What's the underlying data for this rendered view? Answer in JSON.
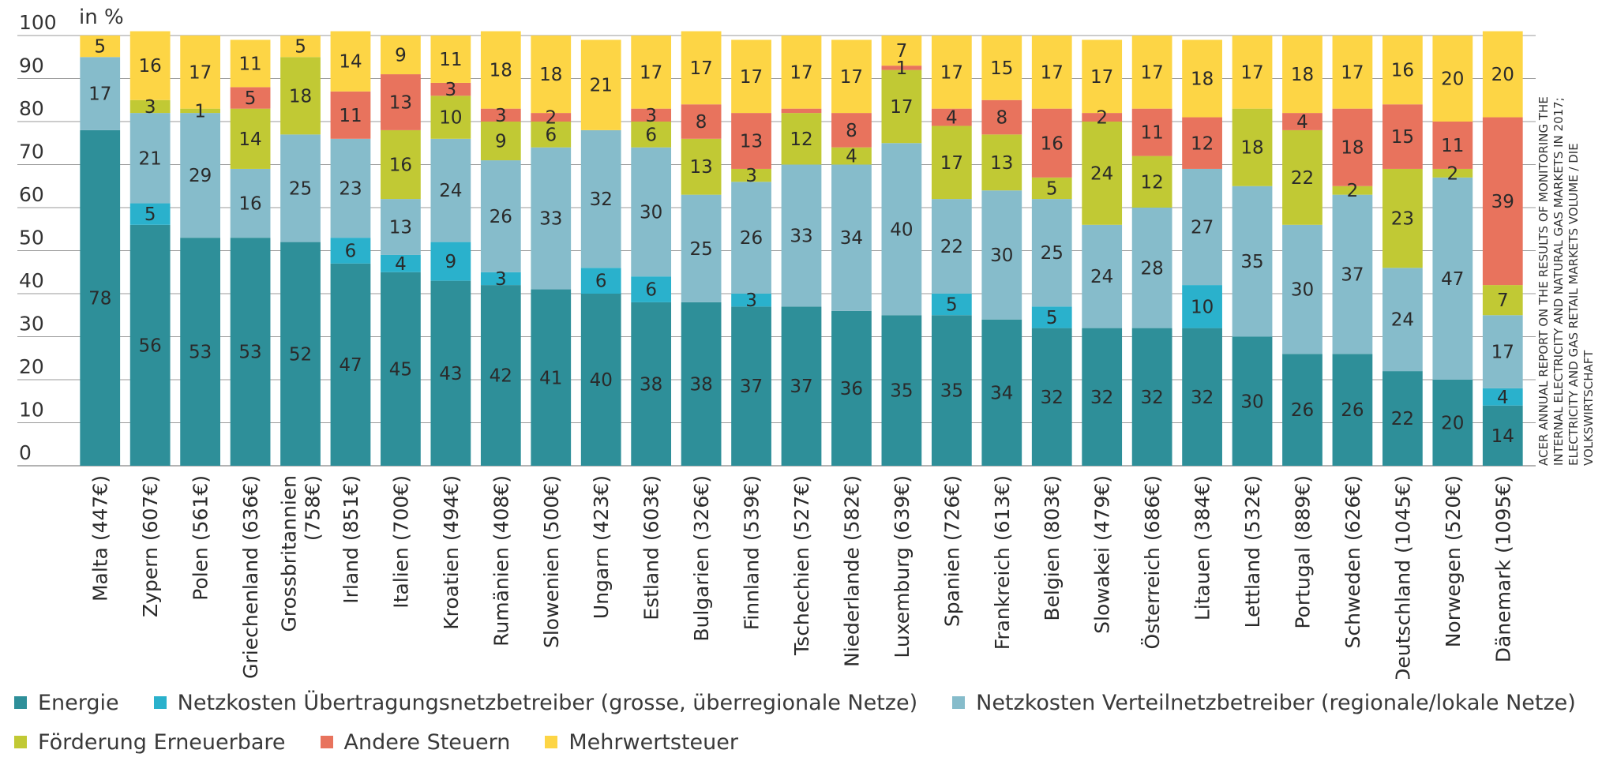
{
  "unit_label": "in %",
  "source_note": "ACER ANNUAL REPORT ON THE RESULTS OF MONITORING THE INTERNAL ELECTRICITY AND NATURAL GAS MARKETS IN 2017; ELECTRICITY AND GAS RETAIL MARKETS VOLUME / DIE VOLKSWIRTSCHAFT",
  "chart_data": {
    "type": "bar",
    "stacked": true,
    "title": "",
    "xlabel": "",
    "ylabel": "in %",
    "ylim": [
      0,
      100
    ],
    "yticks": [
      0,
      10,
      20,
      30,
      40,
      50,
      60,
      70,
      80,
      90,
      100
    ],
    "grid": true,
    "legend_position": "bottom",
    "categories": [
      "Malta (447€)",
      "Zypern (607€)",
      "Polen (561€)",
      "Griechenland (636€)",
      "Grossbritannien (758€)",
      "Irland (851€)",
      "Italien (700€)",
      "Kroatien (494€)",
      "Rumänien (408€)",
      "Slowenien (500€)",
      "Ungarn (423€)",
      "Estland (603€)",
      "Bulgarien (326€)",
      "Finnland (539€)",
      "Tschechien (527€)",
      "Niederlande (582€)",
      "Luxemburg (639€)",
      "Spanien (726€)",
      "Frankreich (613€)",
      "Belgien (803€)",
      "Slowakei (479€)",
      "Österreich (686€)",
      "Litauen (384€)",
      "Lettland (532€)",
      "Portugal (889€)",
      "Schweden (626€)",
      "Deutschland (1045€)",
      "Norwegen (520€)",
      "Dänemark (1095€)"
    ],
    "category_lines": [
      [
        "Malta (447€)"
      ],
      [
        "Zypern (607€)"
      ],
      [
        "Polen (561€)"
      ],
      [
        "Griechenland (636€)"
      ],
      [
        "Grossbritannien",
        "(758€)"
      ],
      [
        "Irland (851€)"
      ],
      [
        "Italien (700€)"
      ],
      [
        "Kroatien (494€)"
      ],
      [
        "Rumänien (408€)"
      ],
      [
        "Slowenien (500€)"
      ],
      [
        "Ungarn (423€)"
      ],
      [
        "Estland (603€)"
      ],
      [
        "Bulgarien (326€)"
      ],
      [
        "Finnland (539€)"
      ],
      [
        "Tschechien (527€)"
      ],
      [
        "Niederlande (582€)"
      ],
      [
        "Luxemburg (639€)"
      ],
      [
        "Spanien (726€)"
      ],
      [
        "Frankreich (613€)"
      ],
      [
        "Belgien (803€)"
      ],
      [
        "Slowakei (479€)"
      ],
      [
        "Österreich (686€)"
      ],
      [
        "Litauen (384€)"
      ],
      [
        "Lettland (532€)"
      ],
      [
        "Portugal (889€)"
      ],
      [
        "Schweden (626€)"
      ],
      [
        "Deutschland (1045€)"
      ],
      [
        "Norwegen (520€)"
      ],
      [
        "Dänemark (1095€)"
      ]
    ],
    "series": [
      {
        "name": "Energie",
        "color": "#2e8f99",
        "values": [
          78,
          56,
          53,
          53,
          52,
          47,
          45,
          43,
          42,
          41,
          40,
          38,
          38,
          37,
          37,
          36,
          35,
          35,
          34,
          32,
          32,
          32,
          32,
          30,
          26,
          26,
          22,
          20,
          14
        ]
      },
      {
        "name": "Netzkosten Übertragungsnetzbetreiber (grosse, überregionale Netze)",
        "color": "#2ab1cc",
        "values": [
          0,
          5,
          0,
          0,
          0,
          6,
          4,
          9,
          3,
          0,
          6,
          6,
          0,
          3,
          0,
          0,
          0,
          5,
          0,
          5,
          0,
          0,
          10,
          0,
          0,
          0,
          0,
          0,
          4
        ]
      },
      {
        "name": "Netzkosten Verteilnetzbetreiber (regionale/lokale Netze)",
        "color": "#86bccb",
        "values": [
          17,
          21,
          29,
          16,
          25,
          23,
          13,
          24,
          26,
          33,
          32,
          30,
          25,
          26,
          33,
          34,
          40,
          22,
          30,
          25,
          24,
          28,
          27,
          35,
          30,
          37,
          24,
          47,
          17
        ]
      },
      {
        "name": "Förderung Erneuerbare",
        "color": "#c1c934",
        "values": [
          0,
          3,
          1,
          14,
          18,
          0,
          16,
          10,
          9,
          6,
          0,
          6,
          13,
          3,
          12,
          4,
          17,
          17,
          13,
          5,
          24,
          12,
          0,
          18,
          22,
          2,
          23,
          2,
          7
        ]
      },
      {
        "name": "Andere Steuern",
        "color": "#e8735d",
        "values": [
          0,
          0,
          0,
          5,
          0,
          11,
          13,
          3,
          3,
          2,
          0,
          3,
          8,
          13,
          1,
          8,
          1,
          4,
          8,
          16,
          2,
          11,
          12,
          0,
          4,
          18,
          15,
          11,
          39
        ]
      },
      {
        "name": "Mehrwertsteuer",
        "color": "#fdd545",
        "values": [
          5,
          16,
          17,
          11,
          5,
          14,
          9,
          11,
          18,
          18,
          21,
          17,
          17,
          17,
          17,
          17,
          7,
          17,
          15,
          17,
          17,
          17,
          18,
          17,
          18,
          17,
          16,
          20,
          20
        ]
      }
    ],
    "data_labels": [
      [
        "78",
        "",
        "17",
        "",
        "",
        "5"
      ],
      [
        "56",
        "5",
        "21",
        "3",
        "",
        "16"
      ],
      [
        "53",
        "",
        "29",
        "1",
        "",
        "17"
      ],
      [
        "53",
        "",
        "16",
        "14",
        "5",
        "11"
      ],
      [
        "52",
        "",
        "25",
        "18",
        "",
        "5"
      ],
      [
        "47",
        "6",
        "23",
        "",
        "11",
        "14"
      ],
      [
        "45",
        "4",
        "13",
        "16",
        "13",
        "9"
      ],
      [
        "43",
        "9",
        "24",
        "10",
        "3",
        "11"
      ],
      [
        "42",
        "3",
        "26",
        "9",
        "3",
        "18"
      ],
      [
        "41",
        "",
        "33",
        "6",
        "2",
        "18"
      ],
      [
        "40",
        "6",
        "32",
        "",
        "",
        "21"
      ],
      [
        "38",
        "6",
        "30",
        "6",
        "3",
        "17"
      ],
      [
        "38",
        "",
        "25",
        "13",
        "8",
        "17"
      ],
      [
        "37",
        "3",
        "26",
        "3",
        "13",
        "17"
      ],
      [
        "37",
        "",
        "33",
        "12",
        "",
        "17"
      ],
      [
        "36",
        "",
        "34",
        "4",
        "8",
        "17"
      ],
      [
        "35",
        "",
        "40",
        "17",
        "1",
        "7"
      ],
      [
        "35",
        "5",
        "22",
        "17",
        "4",
        "17"
      ],
      [
        "34",
        "",
        "30",
        "13",
        "8",
        "15"
      ],
      [
        "32",
        "5",
        "25",
        "5",
        "16",
        "17"
      ],
      [
        "32",
        "",
        "24",
        "24",
        "2",
        "17"
      ],
      [
        "32",
        "",
        "28",
        "12",
        "11",
        "17"
      ],
      [
        "32",
        "10",
        "27",
        "",
        "12",
        "18"
      ],
      [
        "30",
        "",
        "35",
        "18",
        "",
        "17"
      ],
      [
        "26",
        "",
        "30",
        "22",
        "4",
        "18"
      ],
      [
        "26",
        "",
        "37",
        "2",
        "18",
        "17"
      ],
      [
        "22",
        "",
        "24",
        "23",
        "15",
        "16"
      ],
      [
        "20",
        "",
        "47",
        "2",
        "11",
        "20"
      ],
      [
        "14",
        "4",
        "17",
        "7",
        "39",
        "20"
      ]
    ]
  }
}
